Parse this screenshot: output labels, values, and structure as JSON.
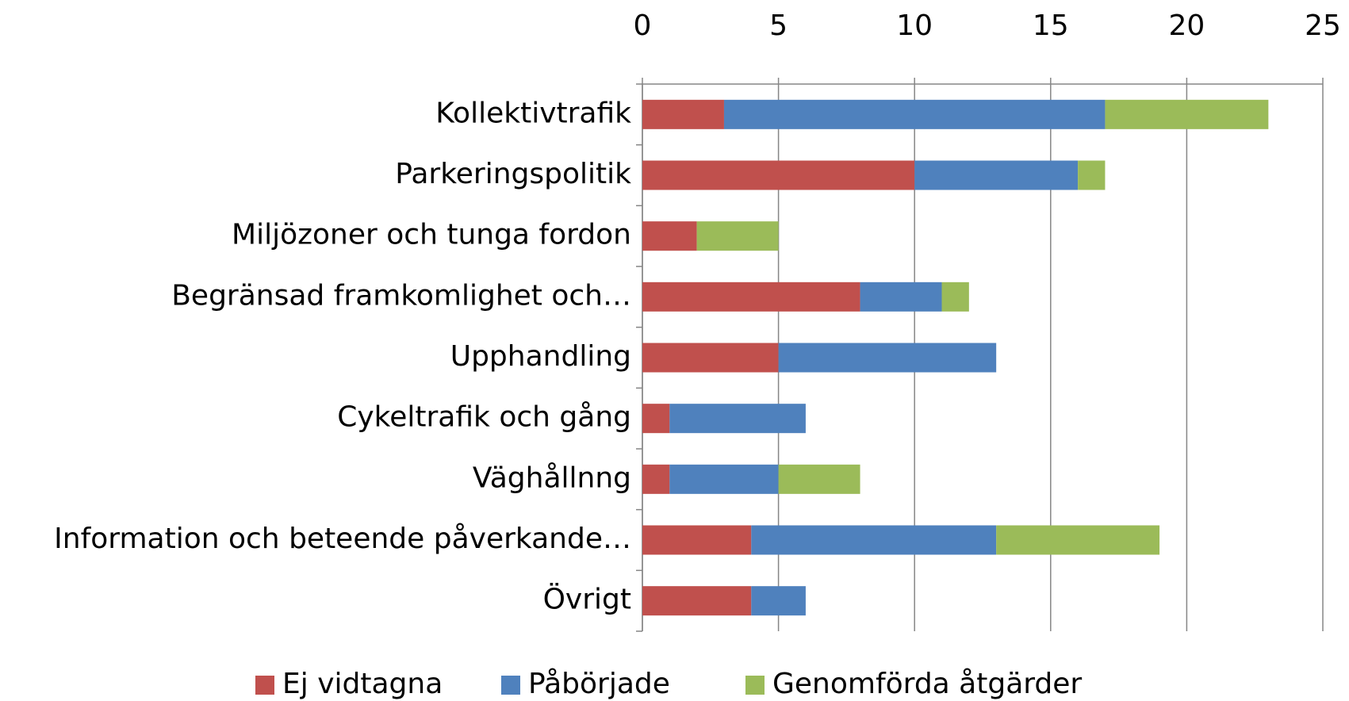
{
  "chart_data": {
    "type": "bar",
    "orientation": "horizontal",
    "stacked": true,
    "categories": [
      "Kollektivtrafik",
      "Parkeringspolitik",
      "Miljözoner och tunga fordon",
      "Begränsad framkomlighet och…",
      "Upphandling",
      "Cykeltrafik och gång",
      "Väghållnng",
      "Information och beteende påverkande…",
      "Övrigt"
    ],
    "series": [
      {
        "name": "Ej vidtagna",
        "color": "#c0504d",
        "values": [
          3,
          10,
          2,
          8,
          5,
          1,
          1,
          4,
          4
        ]
      },
      {
        "name": "Påbörjade",
        "color": "#4f81bd",
        "values": [
          14,
          6,
          0,
          3,
          8,
          5,
          4,
          9,
          2
        ]
      },
      {
        "name": "Genomförda åtgärder",
        "color": "#9bbb59",
        "values": [
          6,
          1,
          3,
          1,
          0,
          0,
          3,
          6,
          0
        ]
      }
    ],
    "xlim": [
      0,
      25
    ],
    "xticks": [
      0,
      5,
      10,
      15,
      20,
      25
    ],
    "grid": true,
    "legend": "bottom"
  }
}
